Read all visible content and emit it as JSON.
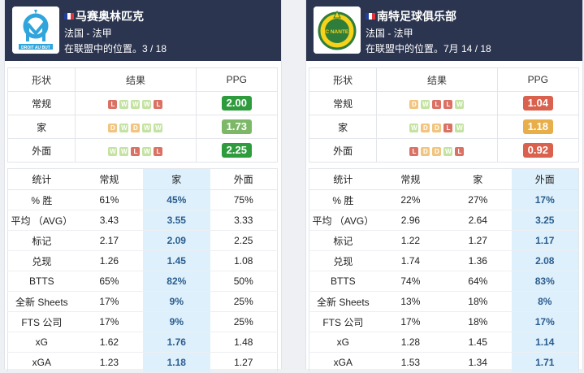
{
  "colors": {
    "header_bg": "#2c3550",
    "highlight_bg": "#def0fb",
    "highlight_text": "#2a5c8e",
    "win": "#c4e3a2",
    "draw": "#f1c580",
    "loss": "#db7164"
  },
  "teams": [
    {
      "id": "left",
      "name": "马赛奥林匹克",
      "country_league": "法国 - 法甲",
      "position": "在联盟中的位置。3 / 18",
      "logo_icon": "marseille-crest-icon",
      "logo_text": "DROIT AU BUT",
      "form_headers": [
        "形状",
        "结果",
        "PPG"
      ],
      "form_rows": [
        {
          "label": "常规",
          "results": [
            "L",
            "W",
            "W",
            "W",
            "L"
          ],
          "ppg": "2.00",
          "ppg_color": "#2e9c3d"
        },
        {
          "label": "家",
          "results": [
            "D",
            "W",
            "D",
            "W",
            "W"
          ],
          "ppg": "1.73",
          "ppg_color": "#7db869"
        },
        {
          "label": "外面",
          "results": [
            "W",
            "W",
            "L",
            "W",
            "L"
          ],
          "ppg": "2.25",
          "ppg_color": "#2e9c3d"
        }
      ],
      "stats_headers": [
        "统计",
        "常规",
        "家",
        "外面"
      ],
      "highlight_col": 2,
      "stats_rows": [
        [
          "% 胜",
          "61%",
          "45%",
          "75%"
        ],
        [
          "平均 （AVG）",
          "3.43",
          "3.55",
          "3.33"
        ],
        [
          "标记",
          "2.17",
          "2.09",
          "2.25"
        ],
        [
          "兑现",
          "1.26",
          "1.45",
          "1.08"
        ],
        [
          "BTTS",
          "65%",
          "82%",
          "50%"
        ],
        [
          "全新 Sheets",
          "17%",
          "9%",
          "25%"
        ],
        [
          "FTS 公司",
          "17%",
          "9%",
          "25%"
        ],
        [
          "xG",
          "1.62",
          "1.76",
          "1.48"
        ],
        [
          "xGA",
          "1.23",
          "1.18",
          "1.27"
        ]
      ]
    },
    {
      "id": "right",
      "name": "南特足球俱乐部",
      "country_league": "法国 - 法甲",
      "position": "在联盟中的位置。7月 14 / 18",
      "logo_icon": "fc-nantes-crest-icon",
      "logo_text": "FC NANTES",
      "form_headers": [
        "形状",
        "结果",
        "PPG"
      ],
      "form_rows": [
        {
          "label": "常规",
          "results": [
            "D",
            "W",
            "L",
            "L",
            "W"
          ],
          "ppg": "1.04",
          "ppg_color": "#d9614d"
        },
        {
          "label": "家",
          "results": [
            "W",
            "D",
            "D",
            "L",
            "W"
          ],
          "ppg": "1.18",
          "ppg_color": "#e7ae4a"
        },
        {
          "label": "外面",
          "results": [
            "L",
            "D",
            "D",
            "W",
            "L"
          ],
          "ppg": "0.92",
          "ppg_color": "#d9614d"
        }
      ],
      "stats_headers": [
        "统计",
        "常规",
        "家",
        "外面"
      ],
      "highlight_col": 3,
      "stats_rows": [
        [
          "% 胜",
          "22%",
          "27%",
          "17%"
        ],
        [
          "平均 （AVG）",
          "2.96",
          "2.64",
          "3.25"
        ],
        [
          "标记",
          "1.22",
          "1.27",
          "1.17"
        ],
        [
          "兑现",
          "1.74",
          "1.36",
          "2.08"
        ],
        [
          "BTTS",
          "74%",
          "64%",
          "83%"
        ],
        [
          "全新 Sheets",
          "13%",
          "18%",
          "8%"
        ],
        [
          "FTS 公司",
          "17%",
          "18%",
          "17%"
        ],
        [
          "xG",
          "1.28",
          "1.45",
          "1.14"
        ],
        [
          "xGA",
          "1.53",
          "1.34",
          "1.71"
        ]
      ]
    }
  ]
}
